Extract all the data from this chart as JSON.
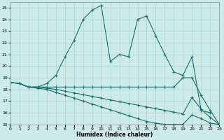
{
  "xlabel": "Humidex (Indice chaleur)",
  "background_color": "#cceae8",
  "grid_color": "#aad4d2",
  "line_color": "#1a6e6b",
  "xlim": [
    0,
    23
  ],
  "ylim": [
    15,
    25.5
  ],
  "yticks": [
    15,
    16,
    17,
    18,
    19,
    20,
    21,
    22,
    23,
    24,
    25
  ],
  "xticks": [
    0,
    1,
    2,
    3,
    4,
    5,
    6,
    7,
    8,
    9,
    10,
    11,
    12,
    13,
    14,
    15,
    16,
    17,
    18,
    19,
    20,
    21,
    22,
    23
  ],
  "series": [
    {
      "x": [
        0,
        1,
        2,
        3,
        4,
        5,
        6,
        7,
        8,
        9,
        10,
        11,
        12,
        13,
        14,
        15,
        16,
        17,
        18,
        19,
        20,
        21,
        22
      ],
      "y": [
        18.6,
        18.5,
        18.2,
        18.2,
        18.5,
        19.2,
        20.8,
        22.2,
        24.0,
        24.8,
        25.2,
        20.4,
        21.0,
        20.8,
        24.0,
        24.3,
        22.6,
        21.0,
        19.5,
        19.2,
        20.8,
        16.2,
        16.0
      ]
    },
    {
      "x": [
        0,
        1,
        2,
        3,
        4,
        5,
        6,
        7,
        8,
        9,
        10,
        11,
        12,
        13,
        14,
        15,
        16,
        17,
        18,
        19,
        20,
        21,
        22,
        23
      ],
      "y": [
        18.6,
        18.5,
        18.2,
        18.2,
        18.2,
        18.2,
        18.2,
        18.2,
        18.2,
        18.2,
        18.2,
        18.2,
        18.2,
        18.2,
        18.2,
        18.2,
        18.2,
        18.2,
        18.2,
        19.0,
        19.0,
        17.5,
        16.2,
        15.0
      ]
    },
    {
      "x": [
        0,
        1,
        2,
        3,
        4,
        5,
        6,
        7,
        8,
        9,
        10,
        11,
        12,
        13,
        14,
        15,
        16,
        17,
        18,
        19,
        20,
        21,
        22,
        23
      ],
      "y": [
        18.6,
        18.5,
        18.2,
        18.2,
        18.1,
        18.0,
        17.85,
        17.7,
        17.55,
        17.4,
        17.25,
        17.1,
        16.95,
        16.8,
        16.65,
        16.5,
        16.35,
        16.2,
        16.05,
        15.9,
        17.3,
        16.3,
        15.6,
        15.0
      ]
    },
    {
      "x": [
        0,
        1,
        2,
        3,
        4,
        5,
        6,
        7,
        8,
        9,
        10,
        11,
        12,
        13,
        14,
        15,
        16,
        17,
        18,
        19,
        20,
        21,
        22,
        23
      ],
      "y": [
        18.6,
        18.5,
        18.2,
        18.1,
        18.0,
        17.75,
        17.5,
        17.25,
        17.0,
        16.75,
        16.5,
        16.25,
        16.0,
        15.75,
        15.5,
        15.25,
        15.1,
        15.0,
        15.0,
        15.0,
        15.8,
        15.5,
        15.1,
        15.0
      ]
    }
  ]
}
